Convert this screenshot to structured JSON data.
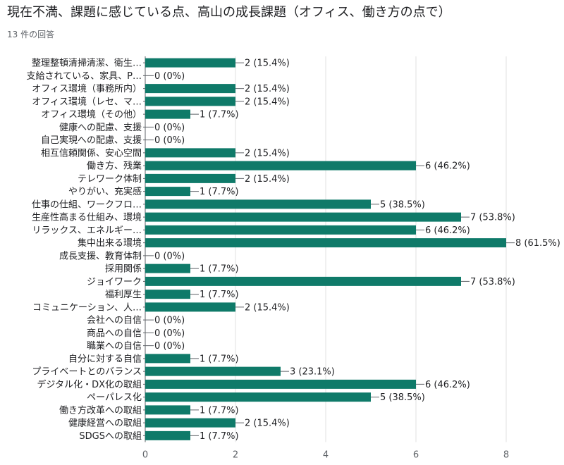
{
  "question": {
    "title": "現在不満、課題に感じている点、高山の成長課題（オフィス、働き方の点で）",
    "response_count": "13 件の回答"
  },
  "colors": {
    "bar": "#0f7a69",
    "grid": "#e0e0e0",
    "axis": "#5f6368"
  },
  "chart_data": {
    "type": "bar",
    "orientation": "horizontal",
    "xlim": [
      0,
      8
    ],
    "x_ticks": [
      0,
      2,
      4,
      6,
      8
    ],
    "grid": true,
    "categories": [
      "整理整頓清掃清潔、衛生…",
      "支給されている、家具、P…",
      "オフィス環境（事務所内）",
      "オフィス環境（レセ、マ…",
      "オフィス環境（その他）",
      "健康への配慮、支援",
      "自己実現への配慮、支援",
      "相互信頼関係、安心空間",
      "働き方、残業",
      "テレワーク体制",
      "やりがい、充実感",
      "仕事の仕組、ワークフロ…",
      "生産性高まる仕組み、環境",
      "リラックス、エネルギー…",
      "集中出来る環境",
      "成長支援、教育体制",
      "採用関係",
      "ジョイワーク",
      "福利厚生",
      "コミュニケーション、人…",
      "会社への自信",
      "商品への自信",
      "職業への自信",
      "自分に対する自信",
      "プライベートとのバランス",
      "デジタル化・DX化の取組",
      "ペーパレス化",
      "働き方改革への取組",
      "健康経営への取組",
      "SDGSへの取組"
    ],
    "values": [
      2,
      0,
      2,
      2,
      1,
      0,
      0,
      2,
      6,
      2,
      1,
      5,
      7,
      6,
      8,
      0,
      1,
      7,
      1,
      2,
      0,
      0,
      0,
      1,
      3,
      6,
      5,
      1,
      2,
      1
    ],
    "value_labels": [
      "2 (15.4%)",
      "0 (0%)",
      "2 (15.4%)",
      "2 (15.4%)",
      "1 (7.7%)",
      "0 (0%)",
      "0 (0%)",
      "2 (15.4%)",
      "6 (46.2%)",
      "2 (15.4%)",
      "1 (7.7%)",
      "5 (38.5%)",
      "7 (53.8%)",
      "6 (46.2%)",
      "8 (61.5%)",
      "0 (0%)",
      "1 (7.7%)",
      "7 (53.8%)",
      "1 (7.7%)",
      "2 (15.4%)",
      "0 (0%)",
      "0 (0%)",
      "0 (0%)",
      "1 (7.7%)",
      "3 (23.1%)",
      "6 (46.2%)",
      "5 (38.5%)",
      "1 (7.7%)",
      "2 (15.4%)",
      "1 (7.7%)"
    ]
  }
}
